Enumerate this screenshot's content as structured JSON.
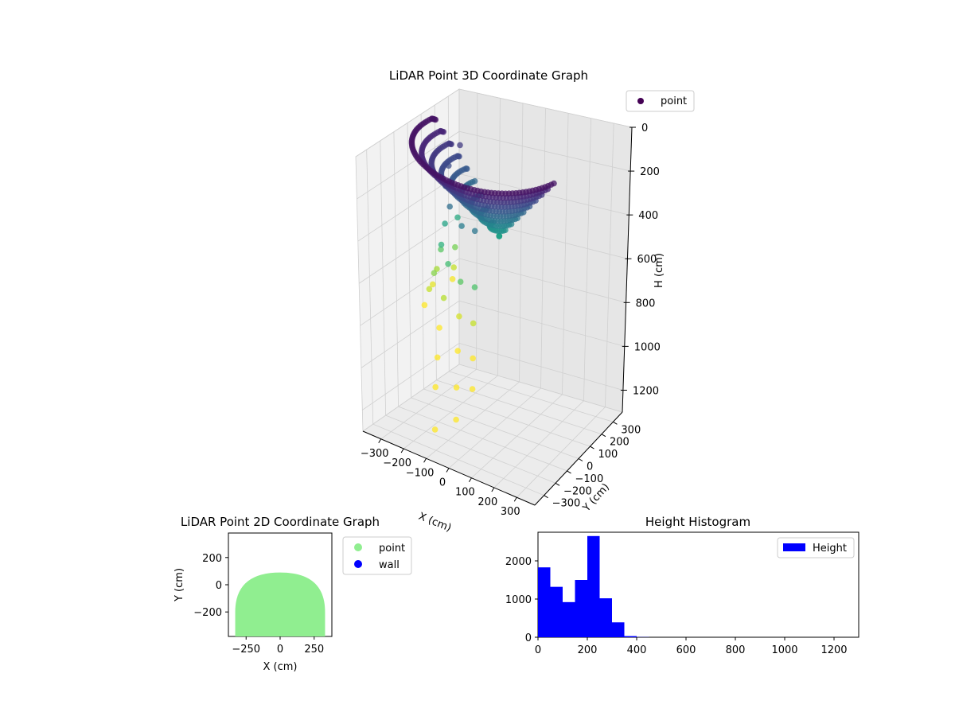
{
  "colors": {
    "point_2d": "#90ee90",
    "wall_2d": "#0000ff",
    "hist_bar": "#0000ff",
    "legend_3d_marker": "#440154",
    "colormap": "viridis"
  },
  "chart_data": [
    {
      "type": "scatter",
      "projection": "3d",
      "title": "LiDAR Point 3D Coordinate Graph",
      "xlabel": "X (cm)",
      "ylabel": "Y (cm)",
      "zlabel": "H (cm)",
      "xticks": [
        -300,
        -200,
        -100,
        0,
        100,
        200,
        300
      ],
      "yticks": [
        -300,
        -200,
        -100,
        0,
        100,
        200,
        300
      ],
      "zticks": [
        0,
        200,
        400,
        600,
        800,
        1000,
        1200
      ],
      "xlim": [
        -380,
        380
      ],
      "ylim": [
        -380,
        380
      ],
      "zlim": [
        0,
        1300
      ],
      "z_inverted": true,
      "grid": true,
      "legend": {
        "placement": "upper-right",
        "entries": [
          "point"
        ]
      },
      "series": [
        {
          "name": "point",
          "point_count": 7800,
          "color_scale": "viridis by height",
          "dome": {
            "shape": "half-disk",
            "radius": 330,
            "y_range": [
              -330,
              90
            ],
            "h_range": [
              0,
              420
            ]
          },
          "strands": [
            {
              "angle": 150,
              "points": [
                [
                  80,
                  100
                ],
                [
                  60,
                  450
                ],
                [
                  40,
                  600
                ],
                [
                  30,
                  700
                ],
                [
                  20,
                  760
                ]
              ]
            },
            {
              "angle": 175,
              "points": [
                [
                  120,
                  150
                ],
                [
                  100,
                  430
                ],
                [
                  80,
                  560
                ],
                [
                  60,
                  660
                ],
                [
                  40,
                  740
                ]
              ]
            },
            {
              "angle": 200,
              "points": [
                [
                  140,
                  200
                ],
                [
                  120,
                  480
                ],
                [
                  90,
                  620
                ],
                [
                  70,
                  700
                ],
                [
                  50,
                  780
                ]
              ]
            },
            {
              "angle": 225,
              "points": [
                [
                  150,
                  250
                ],
                [
                  140,
                  520
                ],
                [
                  120,
                  680
                ],
                [
                  100,
                  820
                ],
                [
                  90,
                  960
                ],
                [
                  80,
                  1100
                ],
                [
                  75,
                  1300
                ]
              ]
            },
            {
              "angle": 250,
              "points": [
                [
                  160,
                  300
                ],
                [
                  150,
                  560
                ],
                [
                  140,
                  720
                ],
                [
                  130,
                  880
                ],
                [
                  120,
                  1050
                ],
                [
                  115,
                  1200
                ]
              ]
            },
            {
              "angle": 275,
              "points": [
                [
                  140,
                  280
                ],
                [
                  130,
                  540
                ],
                [
                  110,
                  700
                ],
                [
                  100,
                  860
                ],
                [
                  90,
                  1000
                ]
              ]
            }
          ]
        }
      ]
    },
    {
      "type": "scatter",
      "title": "LiDAR Point 2D Coordinate Graph",
      "xlabel": "X (cm)",
      "ylabel": "Y (cm)",
      "xticks": [
        -250,
        0,
        250
      ],
      "yticks": [
        -200,
        0,
        200
      ],
      "xlim": [
        -380,
        380
      ],
      "ylim": [
        -380,
        380
      ],
      "legend": {
        "placement": "outside-right",
        "entries": [
          "point",
          "wall"
        ]
      },
      "series": [
        {
          "name": "point",
          "shape": "half-disk",
          "radius": 330,
          "y_top": 90,
          "y_bottom": -380
        },
        {
          "name": "wall",
          "values": []
        }
      ]
    },
    {
      "type": "bar",
      "subtype": "histogram",
      "title": "Height Histogram",
      "xticks": [
        0,
        200,
        400,
        600,
        800,
        1000,
        1200
      ],
      "yticks": [
        0,
        1000,
        2000
      ],
      "xlim": [
        0,
        1300
      ],
      "ylim": [
        0,
        2750
      ],
      "bin_width": 50,
      "legend": {
        "placement": "upper-right",
        "entries": [
          "Height"
        ]
      },
      "series": [
        {
          "name": "Height",
          "bins": [
            [
              0,
              1830
            ],
            [
              50,
              1320
            ],
            [
              100,
              920
            ],
            [
              150,
              1500
            ],
            [
              200,
              2650
            ],
            [
              250,
              1020
            ],
            [
              300,
              390
            ],
            [
              350,
              30
            ],
            [
              400,
              5
            ]
          ]
        }
      ]
    }
  ]
}
